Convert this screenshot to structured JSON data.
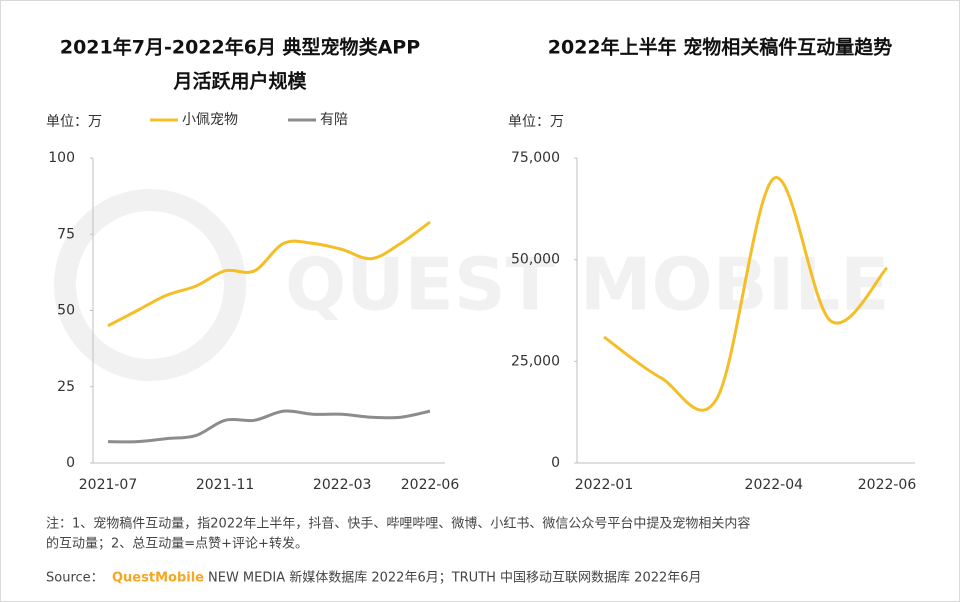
{
  "chart_data": [
    {
      "type": "line",
      "title": [
        "2021年7月-2022年6月 典型宠物类APP",
        "月活跃用户规模"
      ],
      "y_unit": "单位：万",
      "categories": [
        "2021-07",
        null,
        null,
        null,
        "2021-11",
        null,
        null,
        null,
        "2022-03",
        null,
        null,
        "2022-06"
      ],
      "series": [
        {
          "name": "小佩宠物",
          "color": "#f5be27",
          "values": [
            45,
            50,
            55,
            58,
            63,
            63,
            72,
            72,
            70,
            67,
            72,
            79
          ]
        },
        {
          "name": "有陪",
          "color": "#8c8c8c",
          "values": [
            7,
            7,
            8,
            9,
            14,
            14,
            17,
            16,
            16,
            15,
            15,
            17
          ]
        }
      ],
      "ylim": [
        0,
        100
      ],
      "yticks": [
        0,
        25,
        50,
        75,
        100
      ],
      "grid": false,
      "legend": "top"
    },
    {
      "type": "line",
      "title": [
        "2022年上半年 宠物相关稿件互动量趋势"
      ],
      "y_unit": "单位：万",
      "categories": [
        "2022-01",
        null,
        null,
        "2022-04",
        null,
        "2022-06"
      ],
      "series": [
        {
          "color": "#f5be27",
          "values": [
            31000,
            21000,
            16000,
            70000,
            35000,
            48000
          ]
        }
      ],
      "ylim": [
        0,
        75000
      ],
      "yticks": [
        0,
        {
          "value": 25000,
          "label": "25,000"
        },
        {
          "value": 50000,
          "label": "50,000"
        },
        {
          "value": 75000,
          "label": "75,000"
        }
      ],
      "grid": false
    }
  ],
  "watermark": "QUEST MOBILE",
  "notes": [
    "注：1、宠物稿件互动量，指2022年上半年，抖音、快手、哔哩哔哩、微博、小红书、微信公众号平台中提及宠物相关内容",
    "的互动量；2、总互动量=点赞+评论+转发。"
  ],
  "source": {
    "label": "Source：",
    "brand": "QuestMobile",
    "text": "NEW MEDIA 新媒体数据库 2022年6月；TRUTH 中国移动互联网数据库 2022年6月"
  }
}
